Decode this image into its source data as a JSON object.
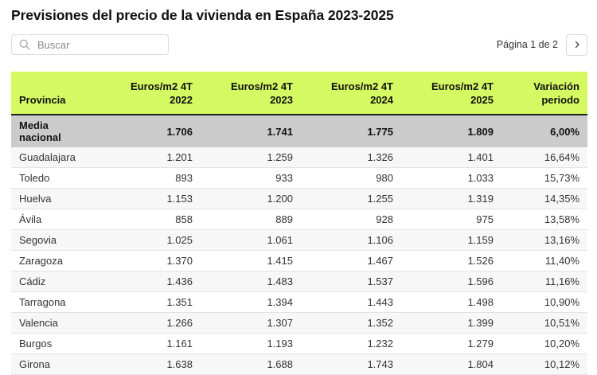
{
  "title": "Previsiones del precio de la vivienda en España 2023-2025",
  "search": {
    "placeholder": "Buscar",
    "value": ""
  },
  "pagination": {
    "label": "Página 1 de 2"
  },
  "colors": {
    "header_bg": "#d5f962",
    "summary_bg": "#cbcbcb",
    "row_alt_bg": "#f7f7f7"
  },
  "chart_data": {
    "type": "table",
    "title": "Previsiones del precio de la vivienda en España 2023-2025",
    "columns": [
      "Provincia",
      "Euros/m2 4T 2022",
      "Euros/m2 4T 2023",
      "Euros/m2 4T 2024",
      "Euros/m2 4T 2025",
      "Variación periodo"
    ],
    "summary_row": {
      "label": "Media nacional",
      "values": [
        "1.706",
        "1.741",
        "1.775",
        "1.809",
        "6,00%"
      ]
    },
    "rows": [
      {
        "label": "Guadalajara",
        "values": [
          "1.201",
          "1.259",
          "1.326",
          "1.401",
          "16,64%"
        ]
      },
      {
        "label": "Toledo",
        "values": [
          "893",
          "933",
          "980",
          "1.033",
          "15,73%"
        ]
      },
      {
        "label": "Huelva",
        "values": [
          "1.153",
          "1.200",
          "1.255",
          "1.319",
          "14,35%"
        ]
      },
      {
        "label": "Ávila",
        "values": [
          "858",
          "889",
          "928",
          "975",
          "13,58%"
        ]
      },
      {
        "label": "Segovia",
        "values": [
          "1.025",
          "1.061",
          "1.106",
          "1.159",
          "13,16%"
        ]
      },
      {
        "label": "Zaragoza",
        "values": [
          "1.370",
          "1.415",
          "1.467",
          "1.526",
          "11,40%"
        ]
      },
      {
        "label": "Cádiz",
        "values": [
          "1.436",
          "1.483",
          "1.537",
          "1.596",
          "11,16%"
        ]
      },
      {
        "label": "Tarragona",
        "values": [
          "1.351",
          "1.394",
          "1.443",
          "1.498",
          "10,90%"
        ]
      },
      {
        "label": "Valencia",
        "values": [
          "1.266",
          "1.307",
          "1.352",
          "1.399",
          "10,51%"
        ]
      },
      {
        "label": "Burgos",
        "values": [
          "1.161",
          "1.193",
          "1.232",
          "1.279",
          "10,20%"
        ]
      },
      {
        "label": "Girona",
        "values": [
          "1.638",
          "1.688",
          "1.743",
          "1.804",
          "10,12%"
        ]
      }
    ]
  }
}
